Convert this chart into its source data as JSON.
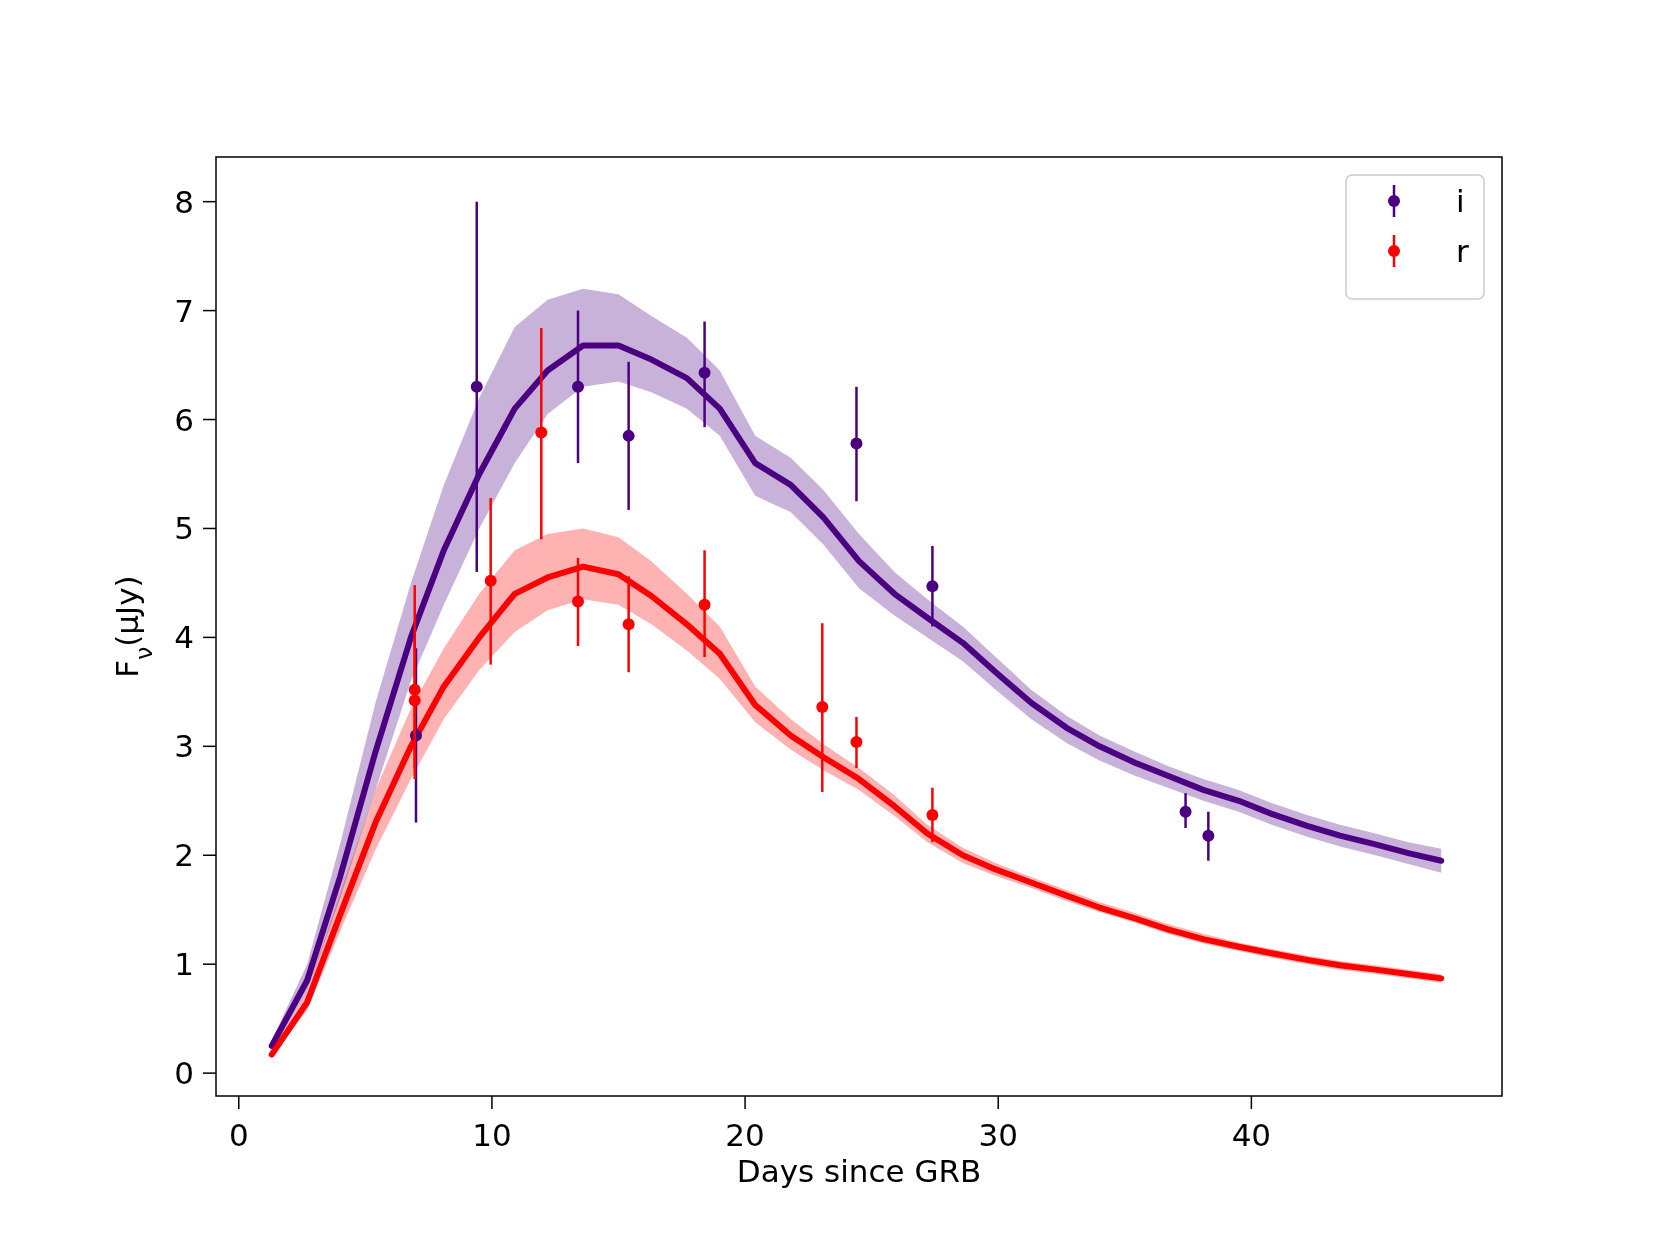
{
  "chart_data": {
    "type": "scatter",
    "xlabel": "Days since GRB",
    "ylabel": "F$_{ν}$(μJy)",
    "xlim": [
      -0.9,
      49.9
    ],
    "ylim": [
      -0.21,
      8.41
    ],
    "xticks": [
      0,
      10,
      20,
      30,
      40
    ],
    "yticks": [
      0,
      1,
      2,
      3,
      4,
      5,
      6,
      7,
      8
    ],
    "grid": false,
    "legend": "top right",
    "series": [
      {
        "type": "line",
        "color": "#4b0082",
        "marker": "none",
        "x": [
          1.3,
          2.7,
          4,
          5.4,
          6.8,
          8.1,
          9.5,
          10.9,
          12.2,
          13.6,
          15,
          16.3,
          17.7,
          19,
          20.4,
          21.8,
          23.1,
          24.5,
          25.9,
          27.2,
          28.6,
          29.9,
          31.3,
          32.7,
          34,
          35.4,
          36.7,
          38.1,
          39.5,
          40.8,
          42.2,
          43.5,
          44.9,
          46.2,
          47.5
        ],
        "values": [
          0.25,
          0.85,
          1.8,
          2.95,
          4.0,
          4.8,
          5.5,
          6.1,
          6.45,
          6.68,
          6.68,
          6.55,
          6.38,
          6.1,
          5.6,
          5.4,
          5.1,
          4.7,
          4.4,
          4.18,
          3.95,
          3.68,
          3.4,
          3.17,
          3.0,
          2.85,
          2.73,
          2.6,
          2.5,
          2.38,
          2.27,
          2.18,
          2.1,
          2.02,
          1.95
        ],
        "upper": [
          0.3,
          1.0,
          2.1,
          3.4,
          4.5,
          5.4,
          6.2,
          6.85,
          7.1,
          7.2,
          7.15,
          6.95,
          6.75,
          6.45,
          5.85,
          5.65,
          5.35,
          4.95,
          4.6,
          4.35,
          4.1,
          3.82,
          3.52,
          3.28,
          3.1,
          2.95,
          2.82,
          2.7,
          2.6,
          2.48,
          2.37,
          2.28,
          2.2,
          2.12,
          2.06
        ],
        "lower": [
          0.2,
          0.75,
          1.6,
          2.6,
          3.6,
          4.3,
          5.0,
          5.6,
          6.05,
          6.3,
          6.35,
          6.25,
          6.1,
          5.85,
          5.3,
          5.15,
          4.85,
          4.45,
          4.2,
          4.0,
          3.78,
          3.52,
          3.25,
          3.03,
          2.87,
          2.73,
          2.62,
          2.5,
          2.4,
          2.28,
          2.17,
          2.08,
          2.0,
          1.92,
          1.84
        ]
      },
      {
        "type": "line",
        "color": "#ff0000",
        "marker": "none",
        "x": [
          1.3,
          2.7,
          4,
          5.4,
          6.8,
          8.1,
          9.5,
          10.9,
          12.2,
          13.6,
          15,
          16.3,
          17.7,
          19,
          20.4,
          21.8,
          23.1,
          24.5,
          25.9,
          27.2,
          28.6,
          29.9,
          31.3,
          32.7,
          34,
          35.4,
          36.7,
          38.1,
          39.5,
          40.8,
          42.2,
          43.5,
          44.9,
          46.2,
          47.5
        ],
        "values": [
          0.17,
          0.65,
          1.45,
          2.3,
          3.0,
          3.55,
          4.0,
          4.4,
          4.55,
          4.65,
          4.58,
          4.38,
          4.12,
          3.85,
          3.38,
          3.1,
          2.9,
          2.7,
          2.45,
          2.2,
          2.0,
          1.87,
          1.75,
          1.63,
          1.52,
          1.42,
          1.32,
          1.23,
          1.16,
          1.1,
          1.04,
          0.99,
          0.95,
          0.91,
          0.87
        ],
        "upper": [
          0.2,
          0.75,
          1.65,
          2.6,
          3.35,
          3.9,
          4.4,
          4.8,
          4.95,
          5.0,
          4.92,
          4.7,
          4.4,
          4.1,
          3.55,
          3.25,
          3.02,
          2.8,
          2.55,
          2.28,
          2.07,
          1.93,
          1.8,
          1.68,
          1.57,
          1.47,
          1.37,
          1.28,
          1.2,
          1.14,
          1.08,
          1.03,
          0.99,
          0.95,
          0.91
        ],
        "lower": [
          0.15,
          0.58,
          1.3,
          2.05,
          2.7,
          3.25,
          3.7,
          4.05,
          4.25,
          4.35,
          4.3,
          4.12,
          3.88,
          3.62,
          3.22,
          2.97,
          2.78,
          2.6,
          2.36,
          2.12,
          1.93,
          1.81,
          1.7,
          1.58,
          1.48,
          1.38,
          1.28,
          1.19,
          1.12,
          1.06,
          1.0,
          0.95,
          0.91,
          0.87,
          0.83
        ]
      },
      {
        "name": "i",
        "color": "#4b0082",
        "marker": "circle",
        "x": [
          7.0,
          9.4,
          13.4,
          15.4,
          18.4,
          24.4,
          27.4,
          37.4,
          38.3
        ],
        "values": [
          3.1,
          6.3,
          6.3,
          5.85,
          6.43,
          5.78,
          4.47,
          2.4,
          2.18
        ],
        "errors": [
          [
            2.3,
            3.9
          ],
          [
            4.6,
            8.0
          ],
          [
            5.6,
            7.0
          ],
          [
            5.17,
            6.53
          ],
          [
            5.93,
            6.9
          ],
          [
            5.25,
            6.3
          ],
          [
            4.1,
            4.84
          ],
          [
            2.25,
            2.57
          ],
          [
            1.95,
            2.4
          ]
        ]
      },
      {
        "name": "r",
        "color": "#ff0000",
        "marker": "circle",
        "x": [
          6.95,
          6.95,
          9.95,
          11.95,
          13.4,
          15.4,
          18.4,
          23.05,
          24.4,
          27.4
        ],
        "values": [
          3.52,
          3.42,
          4.52,
          5.88,
          4.33,
          4.12,
          4.3,
          3.36,
          3.04,
          2.37
        ],
        "errors": [
          [
            2.7,
            4.48
          ],
          [
            2.8,
            4.0
          ],
          [
            3.75,
            5.28
          ],
          [
            4.9,
            6.84
          ],
          [
            3.92,
            4.73
          ],
          [
            3.68,
            4.56
          ],
          [
            3.82,
            4.8
          ],
          [
            2.58,
            4.13
          ],
          [
            2.8,
            3.27
          ],
          [
            2.12,
            2.62
          ]
        ]
      }
    ]
  }
}
